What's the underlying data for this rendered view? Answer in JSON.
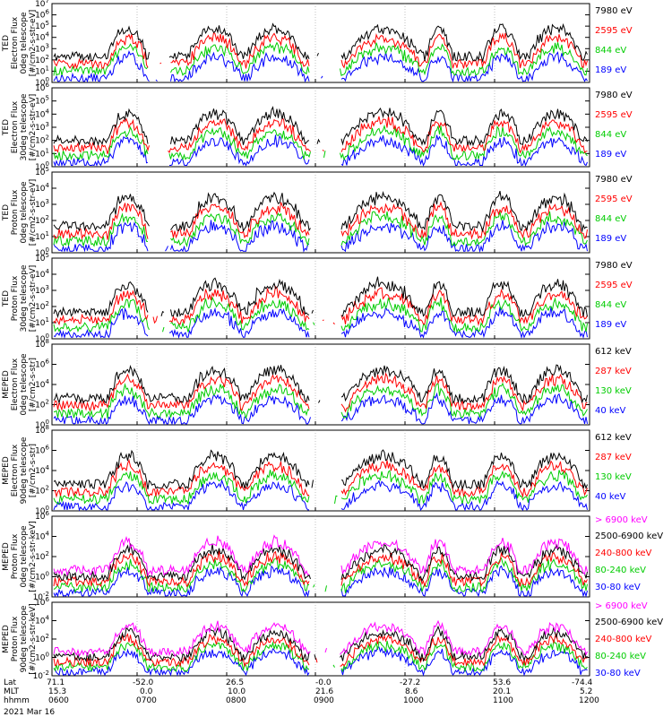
{
  "chart_data": [
    {
      "type": "line",
      "ylabel_lines": [
        "TED",
        "Electron Flux",
        "0deg telescope",
        "[#/cm2-s-str-eV]"
      ],
      "yticks": [
        "10^0",
        "10^1",
        "10^2",
        "10^3",
        "10^4",
        "10^5",
        "10^6",
        "10^7"
      ],
      "ylim_exp": [
        0,
        7
      ],
      "series": [
        {
          "name": "7980 eV",
          "color": "#000000",
          "values": []
        },
        {
          "name": "2595 eV",
          "color": "#ff0000",
          "values": []
        },
        {
          "name": "844 eV",
          "color": "#00cc00",
          "values": []
        },
        {
          "name": "189 eV",
          "color": "#0000ff",
          "values": []
        }
      ]
    },
    {
      "type": "line",
      "ylabel_lines": [
        "TED",
        "Electron Flux",
        "30deg telescope",
        "[#/cm2-s-str-eV]"
      ],
      "yticks": [
        "10^0",
        "10^1",
        "10^2",
        "10^3",
        "10^4",
        "10^5",
        "10^6"
      ],
      "ylim_exp": [
        0,
        6
      ],
      "series": [
        {
          "name": "7980 eV",
          "color": "#000000",
          "values": []
        },
        {
          "name": "2595 eV",
          "color": "#ff0000",
          "values": []
        },
        {
          "name": "844 eV",
          "color": "#00cc00",
          "values": []
        },
        {
          "name": "189 eV",
          "color": "#0000ff",
          "values": []
        }
      ]
    },
    {
      "type": "line",
      "ylabel_lines": [
        "TED",
        "Proton Flux",
        "0deg telescope",
        "[#/cm2-s-str-eV]"
      ],
      "yticks": [
        "10^0",
        "10^1",
        "10^2",
        "10^3",
        "10^4",
        "10^5"
      ],
      "ylim_exp": [
        0,
        5
      ],
      "series": [
        {
          "name": "7980 eV",
          "color": "#000000",
          "values": []
        },
        {
          "name": "2595 eV",
          "color": "#ff0000",
          "values": []
        },
        {
          "name": "844 eV",
          "color": "#00cc00",
          "values": []
        },
        {
          "name": "189 eV",
          "color": "#0000ff",
          "values": []
        }
      ]
    },
    {
      "type": "line",
      "ylabel_lines": [
        "TED",
        "Proton Flux",
        "30deg telescope",
        "[#/cm2-s-str-eV]"
      ],
      "yticks": [
        "10^0",
        "10^1",
        "10^2",
        "10^3",
        "10^4",
        "10^5"
      ],
      "ylim_exp": [
        0,
        5
      ],
      "series": [
        {
          "name": "7980 eV",
          "color": "#000000",
          "values": []
        },
        {
          "name": "2595 eV",
          "color": "#ff0000",
          "values": []
        },
        {
          "name": "844 eV",
          "color": "#00cc00",
          "values": []
        },
        {
          "name": "189 eV",
          "color": "#0000ff",
          "values": []
        }
      ]
    },
    {
      "type": "line",
      "ylabel_lines": [
        "MEPED",
        "Electron Flux",
        "0deg telescope",
        "[#/cm2-s-str]"
      ],
      "yticks": [
        "10^0",
        "10^2",
        "10^4",
        "10^6",
        "10^8"
      ],
      "ylim_exp": [
        0,
        8
      ],
      "series": [
        {
          "name": "612 keV",
          "color": "#000000",
          "values": []
        },
        {
          "name": "287 keV",
          "color": "#ff0000",
          "values": []
        },
        {
          "name": "130 keV",
          "color": "#00cc00",
          "values": []
        },
        {
          "name": "40 keV",
          "color": "#0000ff",
          "values": []
        }
      ]
    },
    {
      "type": "line",
      "ylabel_lines": [
        "MEPED",
        "Electron Flux",
        "90deg telescope",
        "[#/cm2-s-str]"
      ],
      "yticks": [
        "10^0",
        "10^2",
        "10^4",
        "10^6",
        "10^8"
      ],
      "ylim_exp": [
        0,
        8
      ],
      "series": [
        {
          "name": "612 keV",
          "color": "#000000",
          "values": []
        },
        {
          "name": "287 keV",
          "color": "#ff0000",
          "values": []
        },
        {
          "name": "130 keV",
          "color": "#00cc00",
          "values": []
        },
        {
          "name": "40 keV",
          "color": "#0000ff",
          "values": []
        }
      ]
    },
    {
      "type": "line",
      "ylabel_lines": [
        "MEPED",
        "Proton Flux",
        "0deg telescope",
        "[#/cm2-s-str-keV]"
      ],
      "yticks": [
        "10^-2",
        "10^0",
        "10^2",
        "10^4",
        "10^6"
      ],
      "ylim_exp": [
        -2,
        6
      ],
      "series": [
        {
          "name": "> 6900 keV",
          "color": "#ff00ff",
          "values": []
        },
        {
          "name": "2500-6900 keV",
          "color": "#000000",
          "values": []
        },
        {
          "name": "240-800 keV",
          "color": "#ff0000",
          "values": []
        },
        {
          "name": "80-240 keV",
          "color": "#00cc00",
          "values": []
        },
        {
          "name": "30-80 keV",
          "color": "#0000ff",
          "values": []
        }
      ]
    },
    {
      "type": "line",
      "ylabel_lines": [
        "MEPED",
        "Proton Flux",
        "90deg telescope",
        "[#/cm2-s-str-keV]"
      ],
      "yticks": [
        "10^-2",
        "10^0",
        "10^2",
        "10^4",
        "10^6"
      ],
      "ylim_exp": [
        -2,
        6
      ],
      "series": [
        {
          "name": "> 6900 keV",
          "color": "#ff00ff",
          "values": []
        },
        {
          "name": "2500-6900 keV",
          "color": "#000000",
          "values": []
        },
        {
          "name": "240-800 keV",
          "color": "#ff0000",
          "values": []
        },
        {
          "name": "80-240 keV",
          "color": "#00cc00",
          "values": []
        },
        {
          "name": "30-80 keV",
          "color": "#0000ff",
          "values": []
        }
      ]
    }
  ],
  "footer": {
    "row_labels": [
      "Lat",
      "MLT",
      "hhmm"
    ],
    "lat": [
      "71.1",
      "-52.0",
      "26.5",
      "-0.0",
      "-27.2",
      "53.6",
      "-74.4"
    ],
    "mlt": [
      "15.3",
      "0.0",
      "10.0",
      "21.6",
      "8.6",
      "20.1",
      "5.2"
    ],
    "hhmm": [
      "0600",
      "0700",
      "0800",
      "0900",
      "1000",
      "1100",
      "1200"
    ],
    "date": "2021 Mar 16"
  }
}
